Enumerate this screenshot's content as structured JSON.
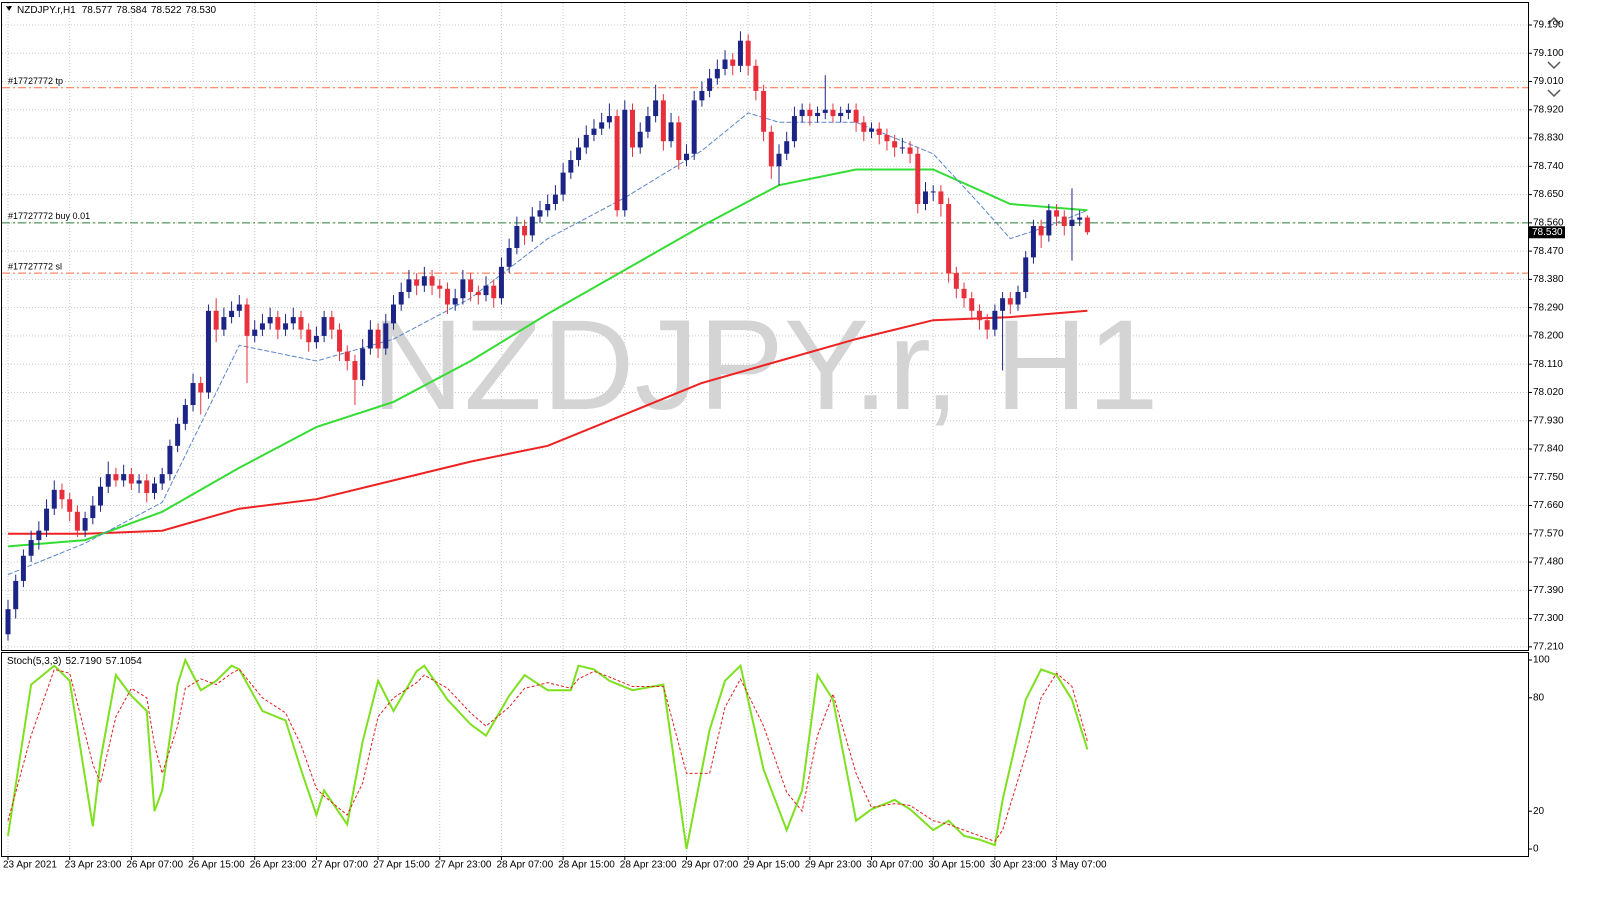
{
  "chart_data": {
    "type": "candlestick",
    "symbol": "NZDJPY.r,H1",
    "watermark": "NZDJPY.r, H1",
    "close_label": "78.530",
    "bull_color": "#1c2585",
    "bear_color": "#e8303c",
    "ylim": [
      77.2,
      79.26
    ],
    "yticks": [
      {
        "value": 77.21,
        "label": "77.210"
      },
      {
        "value": 77.3,
        "label": "77.300"
      },
      {
        "value": 77.39,
        "label": "77.390"
      },
      {
        "value": 77.48,
        "label": "77.480"
      },
      {
        "value": 77.57,
        "label": "77.570"
      },
      {
        "value": 77.66,
        "label": "77.660"
      },
      {
        "value": 77.75,
        "label": "77.750"
      },
      {
        "value": 77.84,
        "label": "77.840"
      },
      {
        "value": 77.93,
        "label": "77.930"
      },
      {
        "value": 78.02,
        "label": "78.020"
      },
      {
        "value": 78.11,
        "label": "78.110"
      },
      {
        "value": 78.2,
        "label": "78.200"
      },
      {
        "value": 78.29,
        "label": "78.290"
      },
      {
        "value": 78.38,
        "label": "78.380"
      },
      {
        "value": 78.47,
        "label": "78.470"
      },
      {
        "value": 78.56,
        "label": "78.560"
      },
      {
        "value": 78.65,
        "label": "78.650"
      },
      {
        "value": 78.74,
        "label": "78.740"
      },
      {
        "value": 78.83,
        "label": "78.830"
      },
      {
        "value": 78.92,
        "label": "78.920"
      },
      {
        "value": 79.01,
        "label": "79.010"
      },
      {
        "value": 79.1,
        "label": "79.100"
      },
      {
        "value": 79.19,
        "label": "79.190"
      }
    ],
    "grid": true,
    "time_labels": [
      "23 Apr 2021",
      "23 Apr 23:00",
      "26 Apr 07:00",
      "26 Apr 15:00",
      "26 Apr 23:00",
      "27 Apr 07:00",
      "27 Apr 15:00",
      "27 Apr 23:00",
      "28 Apr 07:00",
      "28 Apr 15:00",
      "28 Apr 23:00",
      "29 Apr 07:00",
      "29 Apr 15:00",
      "29 Apr 23:00",
      "30 Apr 07:00",
      "30 Apr 15:00",
      "30 Apr 23:00",
      "3 May 07:00"
    ],
    "ohlc": [
      [
        77.25,
        77.36,
        77.23,
        77.33
      ],
      [
        77.33,
        77.44,
        77.3,
        77.42
      ],
      [
        77.42,
        77.52,
        77.4,
        77.5
      ],
      [
        77.5,
        77.58,
        77.48,
        77.55
      ],
      [
        77.55,
        77.61,
        77.52,
        77.58
      ],
      [
        77.58,
        77.68,
        77.56,
        77.65
      ],
      [
        77.65,
        77.74,
        77.63,
        77.71
      ],
      [
        77.71,
        77.73,
        77.65,
        77.68
      ],
      [
        77.68,
        77.7,
        77.61,
        77.64
      ],
      [
        77.64,
        77.66,
        77.56,
        77.58
      ],
      [
        77.58,
        77.64,
        77.56,
        77.62
      ],
      [
        77.62,
        77.69,
        77.6,
        77.66
      ],
      [
        77.66,
        77.75,
        77.64,
        77.72
      ],
      [
        77.72,
        77.8,
        77.7,
        77.76
      ],
      [
        77.76,
        77.78,
        77.72,
        77.74
      ],
      [
        77.74,
        77.79,
        77.72,
        77.76
      ],
      [
        77.76,
        77.78,
        77.71,
        77.73
      ],
      [
        77.73,
        77.76,
        77.7,
        77.74
      ],
      [
        77.74,
        77.76,
        77.67,
        77.7
      ],
      [
        77.7,
        77.75,
        77.68,
        77.73
      ],
      [
        77.73,
        77.78,
        77.71,
        77.76
      ],
      [
        77.76,
        77.87,
        77.74,
        77.85
      ],
      [
        77.85,
        77.94,
        77.83,
        77.92
      ],
      [
        77.92,
        78.0,
        77.9,
        77.98
      ],
      [
        77.98,
        78.08,
        77.96,
        78.05
      ],
      [
        78.05,
        78.07,
        77.95,
        78.02
      ],
      [
        78.02,
        78.3,
        78.0,
        78.28
      ],
      [
        78.28,
        78.32,
        78.18,
        78.22
      ],
      [
        78.22,
        78.29,
        78.2,
        78.26
      ],
      [
        78.26,
        78.31,
        78.24,
        78.28
      ],
      [
        78.28,
        78.33,
        78.26,
        78.3
      ],
      [
        78.3,
        78.32,
        78.05,
        78.2
      ],
      [
        78.2,
        78.25,
        78.18,
        78.22
      ],
      [
        78.22,
        78.27,
        78.2,
        78.24
      ],
      [
        78.24,
        78.29,
        78.22,
        78.26
      ],
      [
        78.26,
        78.28,
        78.19,
        78.22
      ],
      [
        78.22,
        78.27,
        78.2,
        78.24
      ],
      [
        78.24,
        78.29,
        78.22,
        78.26
      ],
      [
        78.26,
        78.28,
        78.19,
        78.22
      ],
      [
        78.22,
        78.24,
        78.15,
        78.18
      ],
      [
        78.18,
        78.23,
        78.16,
        78.2
      ],
      [
        78.2,
        78.28,
        78.18,
        78.26
      ],
      [
        78.26,
        78.28,
        78.19,
        78.22
      ],
      [
        78.22,
        78.24,
        78.12,
        78.15
      ],
      [
        78.15,
        78.17,
        78.09,
        78.12
      ],
      [
        78.12,
        78.14,
        77.98,
        78.06
      ],
      [
        78.06,
        78.19,
        78.04,
        78.16
      ],
      [
        78.16,
        78.25,
        78.14,
        78.22
      ],
      [
        78.22,
        78.24,
        78.13,
        78.16
      ],
      [
        78.16,
        78.27,
        78.14,
        78.24
      ],
      [
        78.24,
        78.33,
        78.22,
        78.3
      ],
      [
        78.3,
        78.37,
        78.28,
        78.34
      ],
      [
        78.34,
        78.41,
        78.32,
        78.38
      ],
      [
        78.38,
        78.4,
        78.33,
        78.36
      ],
      [
        78.36,
        78.42,
        78.34,
        78.39
      ],
      [
        78.39,
        78.41,
        78.33,
        78.36
      ],
      [
        78.36,
        78.38,
        78.32,
        78.35
      ],
      [
        78.35,
        78.37,
        78.27,
        78.3
      ],
      [
        78.3,
        78.35,
        78.28,
        78.32
      ],
      [
        78.32,
        78.41,
        78.3,
        78.38
      ],
      [
        78.38,
        78.4,
        78.31,
        78.34
      ],
      [
        78.34,
        78.36,
        78.3,
        78.33
      ],
      [
        78.33,
        78.39,
        78.31,
        78.36
      ],
      [
        78.36,
        78.38,
        78.29,
        78.32
      ],
      [
        78.32,
        78.45,
        78.3,
        78.42
      ],
      [
        78.42,
        78.51,
        78.4,
        78.48
      ],
      [
        78.48,
        78.58,
        78.46,
        78.55
      ],
      [
        78.55,
        78.57,
        78.49,
        78.52
      ],
      [
        78.52,
        78.61,
        78.5,
        78.58
      ],
      [
        78.58,
        78.63,
        78.56,
        78.6
      ],
      [
        78.6,
        78.65,
        78.58,
        78.62
      ],
      [
        78.62,
        78.68,
        78.6,
        78.65
      ],
      [
        78.65,
        78.75,
        78.63,
        78.72
      ],
      [
        78.72,
        78.79,
        78.7,
        78.76
      ],
      [
        78.76,
        78.83,
        78.74,
        78.8
      ],
      [
        78.8,
        78.87,
        78.78,
        78.84
      ],
      [
        78.84,
        78.89,
        78.82,
        78.86
      ],
      [
        78.86,
        78.91,
        78.84,
        78.88
      ],
      [
        78.88,
        78.94,
        78.86,
        78.9
      ],
      [
        78.9,
        78.92,
        78.58,
        78.6
      ],
      [
        78.6,
        78.95,
        78.58,
        78.92
      ],
      [
        78.92,
        78.94,
        78.77,
        78.8
      ],
      [
        78.8,
        78.88,
        78.78,
        78.85
      ],
      [
        78.85,
        78.93,
        78.83,
        78.9
      ],
      [
        78.9,
        79.0,
        78.88,
        78.95
      ],
      [
        78.95,
        78.97,
        78.79,
        78.82
      ],
      [
        78.82,
        78.91,
        78.8,
        78.88
      ],
      [
        78.88,
        78.9,
        78.73,
        78.76
      ],
      [
        78.76,
        78.81,
        78.74,
        78.78
      ],
      [
        78.78,
        78.98,
        78.76,
        78.95
      ],
      [
        78.95,
        79.01,
        78.93,
        78.98
      ],
      [
        78.98,
        79.05,
        78.96,
        79.02
      ],
      [
        79.02,
        79.08,
        79.0,
        79.05
      ],
      [
        79.05,
        79.11,
        79.03,
        79.08
      ],
      [
        79.08,
        79.1,
        79.03,
        79.06
      ],
      [
        79.06,
        79.17,
        79.04,
        79.14
      ],
      [
        79.14,
        79.16,
        79.03,
        79.06
      ],
      [
        79.06,
        79.08,
        78.95,
        78.98
      ],
      [
        78.98,
        79.0,
        78.82,
        78.85
      ],
      [
        78.85,
        78.87,
        78.7,
        78.74
      ],
      [
        78.74,
        78.81,
        78.68,
        78.78
      ],
      [
        78.78,
        78.85,
        78.76,
        78.82
      ],
      [
        78.82,
        78.93,
        78.8,
        78.9
      ],
      [
        78.9,
        78.94,
        78.88,
        78.92
      ],
      [
        78.92,
        78.94,
        78.87,
        78.9
      ],
      [
        78.9,
        78.93,
        78.88,
        78.91
      ],
      [
        78.91,
        79.03,
        78.89,
        78.92
      ],
      [
        78.92,
        78.94,
        78.88,
        78.9
      ],
      [
        78.9,
        78.93,
        78.88,
        78.91
      ],
      [
        78.91,
        78.94,
        78.89,
        78.92
      ],
      [
        78.92,
        78.94,
        78.85,
        78.88
      ],
      [
        78.88,
        78.9,
        78.82,
        78.85
      ],
      [
        78.85,
        78.88,
        78.83,
        78.86
      ],
      [
        78.86,
        78.88,
        78.81,
        78.84
      ],
      [
        78.84,
        78.86,
        78.79,
        78.82
      ],
      [
        78.82,
        78.84,
        78.77,
        78.8
      ],
      [
        78.8,
        78.83,
        78.78,
        78.8
      ],
      [
        78.8,
        78.82,
        78.75,
        78.78
      ],
      [
        78.78,
        78.8,
        78.59,
        78.62
      ],
      [
        78.62,
        78.69,
        78.6,
        78.66
      ],
      [
        78.66,
        78.68,
        78.63,
        78.66
      ],
      [
        78.66,
        78.68,
        78.58,
        78.62
      ],
      [
        78.62,
        78.64,
        78.37,
        78.4
      ],
      [
        78.4,
        78.42,
        78.32,
        78.35
      ],
      [
        78.35,
        78.37,
        78.29,
        78.32
      ],
      [
        78.32,
        78.34,
        78.25,
        78.28
      ],
      [
        78.28,
        78.3,
        78.22,
        78.25
      ],
      [
        78.25,
        78.27,
        78.19,
        78.22
      ],
      [
        78.22,
        78.3,
        78.2,
        78.28
      ],
      [
        78.28,
        78.34,
        78.09,
        78.32
      ],
      [
        78.32,
        78.34,
        78.27,
        78.3
      ],
      [
        78.3,
        78.36,
        78.28,
        78.34
      ],
      [
        78.34,
        78.47,
        78.32,
        78.45
      ],
      [
        78.45,
        78.57,
        78.43,
        78.55
      ],
      [
        78.55,
        78.57,
        78.48,
        78.52
      ],
      [
        78.52,
        78.62,
        78.5,
        78.6
      ],
      [
        78.6,
        78.62,
        78.55,
        78.58
      ],
      [
        78.58,
        78.6,
        78.52,
        78.55
      ],
      [
        78.55,
        78.67,
        78.44,
        78.57
      ],
      [
        78.57,
        78.6,
        78.55,
        78.577
      ],
      [
        78.577,
        78.584,
        78.522,
        78.53
      ]
    ],
    "moving_averages": [
      {
        "color": "#ee2222",
        "width": 2,
        "x": [
          0,
          10,
          20,
          30,
          40,
          50,
          60,
          70,
          80,
          90,
          100,
          110,
          120,
          130,
          140
        ],
        "values": [
          77.57,
          77.57,
          77.58,
          77.65,
          77.68,
          77.74,
          77.8,
          77.85,
          77.95,
          78.05,
          78.12,
          78.19,
          78.25,
          78.26,
          78.28
        ]
      },
      {
        "color": "#33dd33",
        "width": 2,
        "x": [
          0,
          10,
          20,
          30,
          40,
          50,
          60,
          70,
          80,
          90,
          100,
          110,
          120,
          130,
          140
        ],
        "values": [
          77.53,
          77.55,
          77.64,
          77.78,
          77.91,
          77.99,
          78.12,
          78.27,
          78.41,
          78.55,
          78.68,
          78.73,
          78.73,
          78.62,
          78.6
        ]
      },
      {
        "color": "#5b86c9",
        "width": 1,
        "x": [
          0,
          10,
          20,
          25,
          30,
          40,
          50,
          60,
          70,
          80,
          90,
          96,
          100,
          110,
          120,
          126,
          130,
          135,
          140
        ],
        "values": [
          77.44,
          77.54,
          77.67,
          77.92,
          78.17,
          78.12,
          78.19,
          78.32,
          78.51,
          78.64,
          78.79,
          78.91,
          78.88,
          78.88,
          78.78,
          78.62,
          78.51,
          78.55,
          78.6
        ]
      }
    ],
    "levels": [
      {
        "label": "#17727772 tp",
        "value": 78.99,
        "color": "#ff6a3d"
      },
      {
        "label": "#17727772 buy 0.01",
        "value": 78.56,
        "color": "#2e7d32"
      },
      {
        "label": "#17727772 sl",
        "value": 78.4,
        "color": "#ff6a3d"
      }
    ],
    "stochastic": {
      "type": "line",
      "name": "Stoch(5,3,3)",
      "ylim": [
        -3.7,
        103.7
      ],
      "yticks": [
        0,
        20,
        80,
        100
      ],
      "x": [
        0,
        3,
        6,
        8,
        11,
        12,
        14,
        16,
        18,
        19,
        20,
        22,
        23,
        25,
        27,
        29,
        30,
        33,
        36,
        38,
        40,
        41,
        44,
        46,
        48,
        50,
        53,
        54,
        57,
        60,
        62,
        65,
        67,
        70,
        73,
        74,
        76,
        78,
        81,
        85,
        88,
        91,
        93,
        95,
        98,
        101,
        103,
        105,
        107,
        110,
        112,
        115,
        117,
        120,
        122,
        124,
        126,
        128,
        129,
        132,
        134,
        136,
        138,
        140
      ],
      "series": [
        {
          "color": "#7ee01e",
          "value_label": "52.7190",
          "values": [
            7,
            87,
            97,
            89,
            12,
            47,
            92,
            81,
            73,
            20,
            31,
            87,
            100,
            84,
            89,
            97,
            95,
            73,
            68,
            42,
            18,
            31,
            13,
            57,
            89,
            73,
            94,
            97,
            79,
            66,
            60,
            81,
            92,
            84,
            84,
            97,
            95,
            89,
            84,
            87,
            0,
            63,
            89,
            97,
            42,
            10,
            31,
            92,
            79,
            15,
            21,
            26,
            21,
            10,
            15,
            7,
            5,
            2,
            26,
            79,
            95,
            92,
            79,
            52.719
          ]
        },
        {
          "color": "#e02020",
          "value_label": "57.1054",
          "values": [
            15,
            60,
            95,
            93,
            45,
            35,
            70,
            85,
            80,
            55,
            40,
            65,
            85,
            90,
            87,
            93,
            95,
            80,
            72,
            55,
            32,
            28,
            18,
            35,
            70,
            80,
            88,
            92,
            85,
            72,
            65,
            75,
            85,
            88,
            85,
            90,
            94,
            91,
            86,
            86,
            40,
            40,
            75,
            90,
            65,
            30,
            20,
            60,
            82,
            40,
            22,
            24,
            23,
            15,
            13,
            10,
            7,
            4,
            10,
            50,
            80,
            93,
            86,
            57.1054
          ]
        }
      ]
    }
  }
}
